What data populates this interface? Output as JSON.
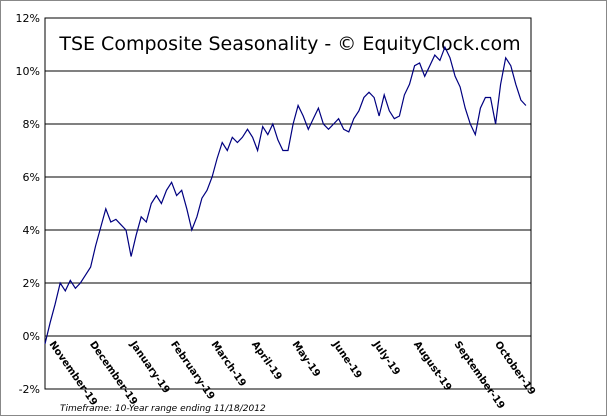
{
  "chart_data": {
    "type": "line",
    "title": "TSE Composite Seasonality - © EquityClock.com",
    "footnote": "Timeframe: 10-Year range ending 11/18/2012",
    "categories": [
      "November-19",
      null,
      null,
      null,
      null,
      null,
      null,
      null,
      "December-19",
      null,
      null,
      null,
      null,
      null,
      null,
      null,
      "January-19",
      null,
      null,
      null,
      null,
      null,
      null,
      null,
      "February-19",
      null,
      null,
      null,
      null,
      null,
      null,
      null,
      "March-19",
      null,
      null,
      null,
      null,
      null,
      null,
      null,
      "April-19",
      null,
      null,
      null,
      null,
      null,
      null,
      null,
      "May-19",
      null,
      null,
      null,
      null,
      null,
      null,
      null,
      "June-19",
      null,
      null,
      null,
      null,
      null,
      null,
      null,
      "July-19",
      null,
      null,
      null,
      null,
      null,
      null,
      null,
      "August-19",
      null,
      null,
      null,
      null,
      null,
      null,
      null,
      "September-19",
      null,
      null,
      null,
      null,
      null,
      null,
      null,
      "October-19",
      null,
      null,
      null,
      null,
      null,
      null,
      null
    ],
    "series": [
      {
        "name": "TSE Composite",
        "color": "#000080",
        "values": [
          -0.3,
          0.5,
          1.2,
          2.0,
          1.7,
          2.1,
          1.8,
          2.0,
          2.3,
          2.6,
          3.4,
          4.1,
          4.8,
          4.3,
          4.4,
          4.2,
          4.0,
          3.0,
          3.8,
          4.5,
          4.3,
          5.0,
          5.3,
          5.0,
          5.5,
          5.8,
          5.3,
          5.5,
          4.8,
          4.0,
          4.5,
          5.2,
          5.5,
          6.0,
          6.7,
          7.3,
          7.0,
          7.5,
          7.3,
          7.5,
          7.8,
          7.5,
          7.0,
          7.9,
          7.6,
          8.0,
          7.4,
          7.0,
          7.0,
          8.0,
          8.7,
          8.3,
          7.8,
          8.2,
          8.6,
          8.0,
          7.8,
          8.0,
          8.2,
          7.8,
          7.7,
          8.2,
          8.5,
          9.0,
          9.2,
          9.0,
          8.3,
          9.1,
          8.5,
          8.2,
          8.3,
          9.1,
          9.5,
          10.2,
          10.3,
          9.8,
          10.2,
          10.6,
          10.4,
          10.9,
          10.5,
          9.8,
          9.4,
          8.6,
          8.0,
          7.6,
          8.6,
          9.0,
          9.0,
          8.0,
          9.5,
          10.5,
          10.2,
          9.5,
          8.9,
          8.7
        ]
      }
    ],
    "ylim": [
      -2,
      12
    ],
    "yticks": [
      {
        "value": -2,
        "label": "-2%"
      },
      {
        "value": 0,
        "label": "0%"
      },
      {
        "value": 2,
        "label": "2%"
      },
      {
        "value": 4,
        "label": "4%"
      },
      {
        "value": 6,
        "label": "6%"
      },
      {
        "value": 8,
        "label": "8%"
      },
      {
        "value": 10,
        "label": "10%"
      },
      {
        "value": 12,
        "label": "12%"
      }
    ],
    "grid": true
  }
}
